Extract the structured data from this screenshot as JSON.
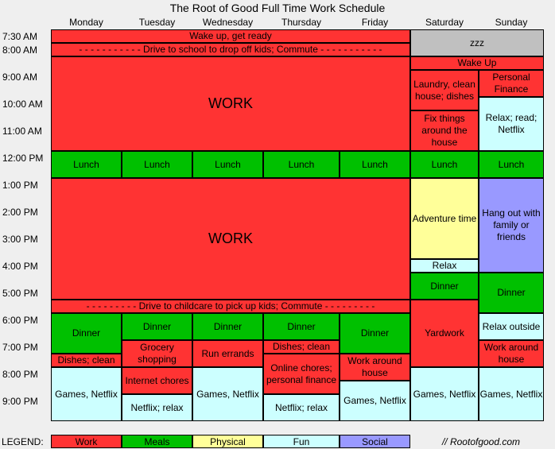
{
  "title": "The Root of Good Full Time Work Schedule",
  "days": [
    "Monday",
    "Tuesday",
    "Wednesday",
    "Thursday",
    "Friday",
    "Saturday",
    "Sunday"
  ],
  "times": [
    "7:30 AM",
    "8:00 AM",
    "9:00 AM",
    "10:00 AM",
    "11:00 AM",
    "12:00 PM",
    "1:00 PM",
    "2:00 PM",
    "3:00 PM",
    "4:00 PM",
    "5:00 PM",
    "6:00 PM",
    "7:00 PM",
    "8:00 PM",
    "9:00 PM"
  ],
  "colors": {
    "work": "#ff3333",
    "meals": "#00c000",
    "physical": "#ffff99",
    "fun": "#ccffff",
    "social": "#9999ff",
    "rest": "#c0c0c0"
  },
  "activities": {
    "wake_weekday": "Wake up, get ready",
    "commute_am": "- - - - - - - - - - - Drive to school to drop off kids; Commute - - - - - - - - - - -",
    "zzz": "zzz",
    "wake_weekend": "Wake Up",
    "work": "WORK",
    "sat_chores": "Laundry, clean house; dishes",
    "sun_finance": "Personal Finance",
    "sat_fix": "Fix things around the house",
    "sun_relax": "Relax; read; Netflix",
    "lunch": "Lunch",
    "sat_adventure": "Adventure time",
    "sun_social": "Hang out with family or friends",
    "sat_relax": "Relax",
    "dinner": "Dinner",
    "commute_pm": "- - - - - - - - - Drive to childcare to pick up kids; Commute - - - - - - - - -",
    "sat_yardwork": "Yardwork",
    "sun_relax_outside": "Relax outside",
    "mon_dishes": "Dishes; clean",
    "tue_grocery": "Grocery shopping",
    "wed_errands": "Run errands",
    "thu_dishes": "Dishes; clean",
    "fri_work_house": "Work around house",
    "sun_work_house": "Work around house",
    "tue_internet": "Internet chores",
    "thu_online": "Online chores; personal finance",
    "games_netflix": "Games, Netflix",
    "netflix_relax": "Netflix; relax",
    "games_netflix_wrap": "Games, Netflix"
  },
  "legend": {
    "label": "LEGEND:",
    "items": [
      "Work",
      "Meals",
      "Physical",
      "Fun",
      "Social"
    ],
    "credit": "// Rootofgood.com"
  }
}
